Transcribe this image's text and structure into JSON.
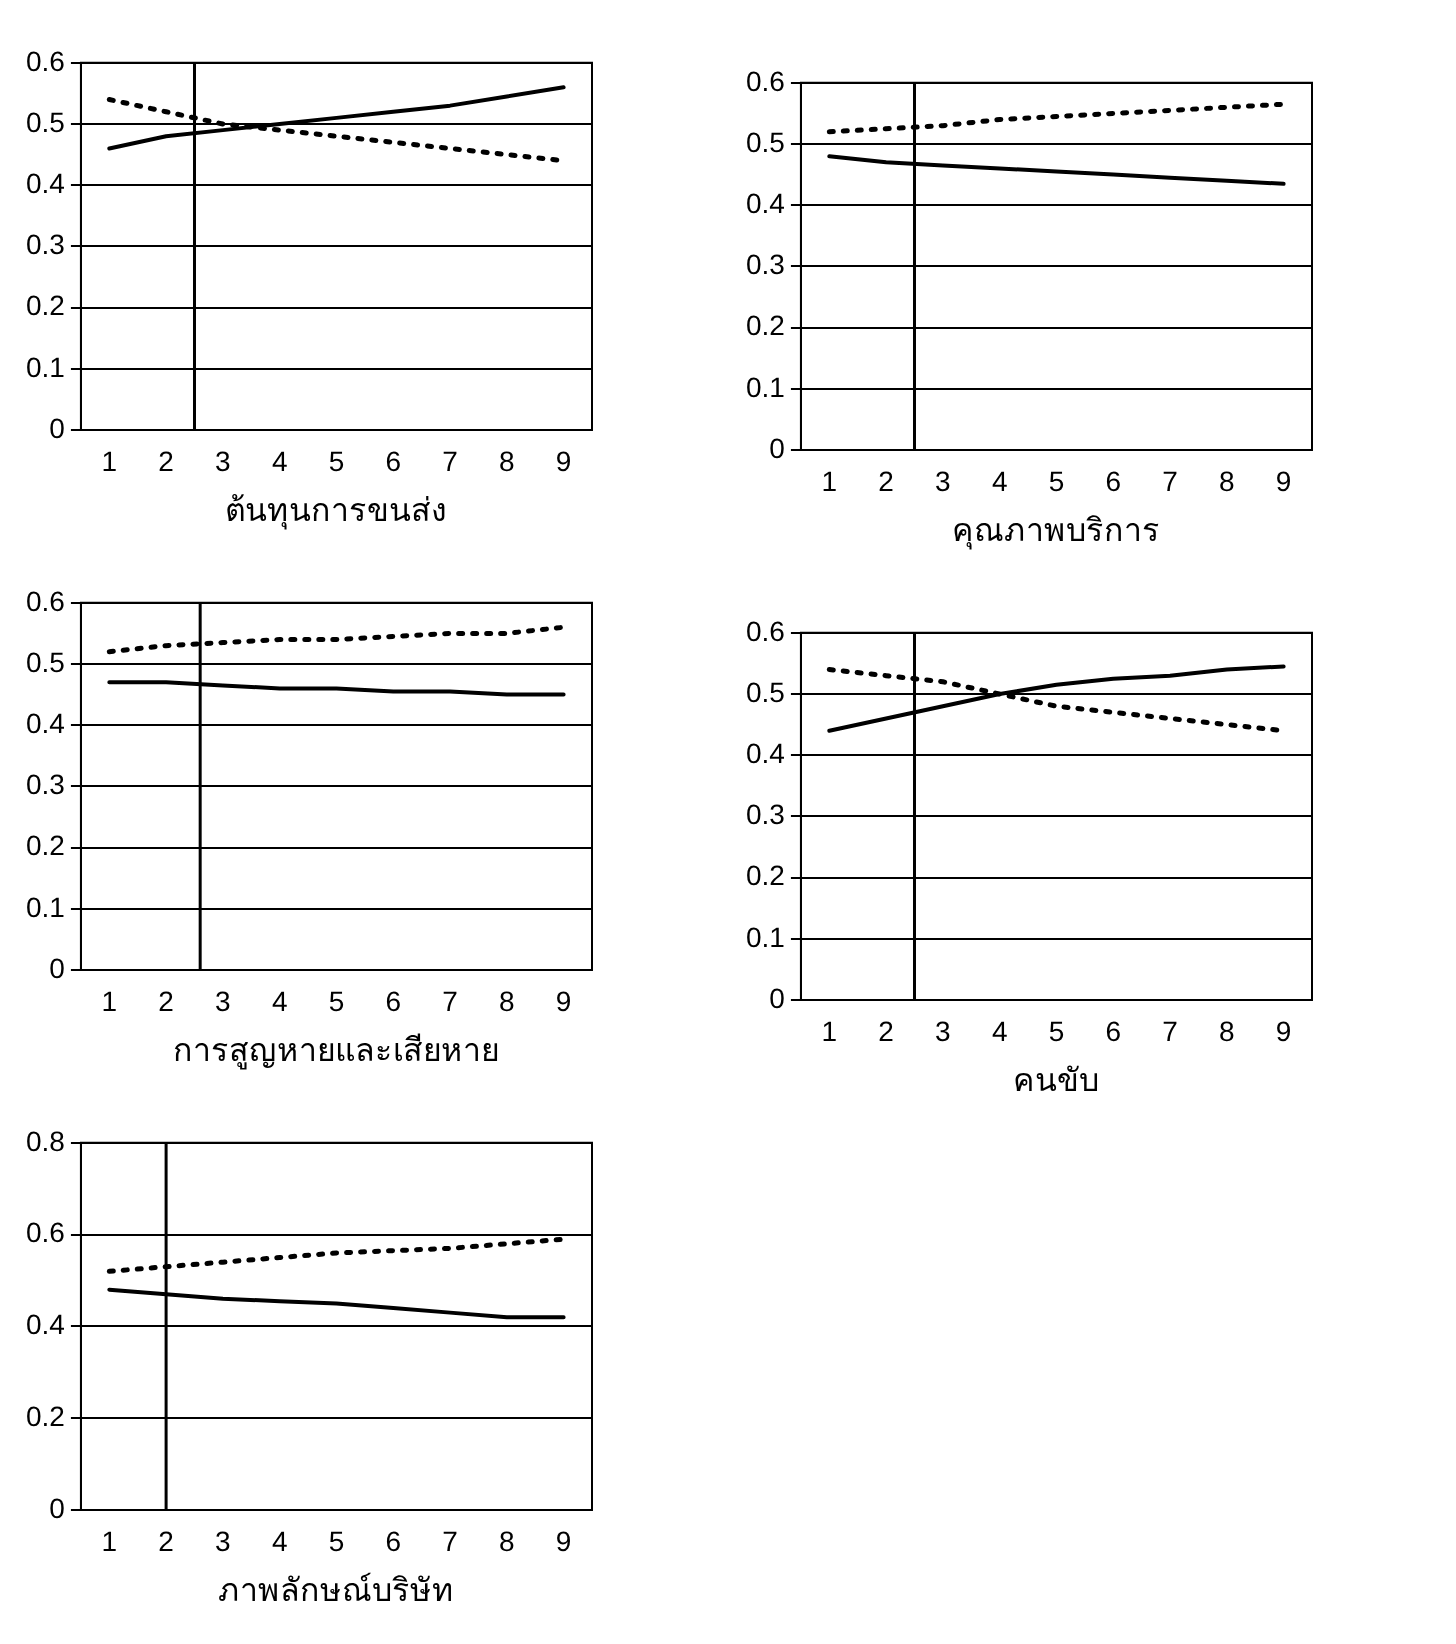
{
  "chart_data": [
    {
      "type": "line",
      "xlabel": "ต้นทุนการขนส่ง",
      "x": [
        1,
        2,
        3,
        4,
        5,
        6,
        7,
        8,
        9
      ],
      "xlim": [
        0.5,
        9.5
      ],
      "xticks": [
        1,
        2,
        3,
        4,
        5,
        6,
        7,
        8,
        9
      ],
      "ylim": [
        0,
        0.6
      ],
      "yticks": [
        0,
        0.1,
        0.2,
        0.3,
        0.4,
        0.5,
        0.6
      ],
      "grid": "y",
      "legend": false,
      "marker": "none",
      "series": [
        {
          "color": "#000000",
          "line_style": "solid",
          "values": [
            0.46,
            0.48,
            0.49,
            0.5,
            0.51,
            0.52,
            0.53,
            0.545,
            0.56
          ]
        },
        {
          "color": "#000000",
          "line_style": "dotted",
          "values": [
            0.54,
            0.52,
            0.5,
            0.49,
            0.48,
            0.47,
            0.46,
            0.45,
            0.44
          ]
        }
      ],
      "ref_lines": [
        {
          "axis": "x",
          "value": 2.5,
          "color": "#000000"
        }
      ]
    },
    {
      "type": "line",
      "xlabel": "คุณภาพบริการ",
      "x": [
        1,
        2,
        3,
        4,
        5,
        6,
        7,
        8,
        9
      ],
      "xlim": [
        0.5,
        9.5
      ],
      "xticks": [
        1,
        2,
        3,
        4,
        5,
        6,
        7,
        8,
        9
      ],
      "ylim": [
        0,
        0.6
      ],
      "yticks": [
        0,
        0.1,
        0.2,
        0.3,
        0.4,
        0.5,
        0.6
      ],
      "grid": "y",
      "legend": false,
      "marker": "none",
      "series": [
        {
          "color": "#000000",
          "line_style": "solid",
          "values": [
            0.48,
            0.47,
            0.465,
            0.46,
            0.455,
            0.45,
            0.445,
            0.44,
            0.435
          ]
        },
        {
          "color": "#000000",
          "line_style": "dotted",
          "values": [
            0.52,
            0.525,
            0.53,
            0.54,
            0.545,
            0.55,
            0.555,
            0.56,
            0.565
          ]
        }
      ],
      "ref_lines": [
        {
          "axis": "x",
          "value": 2.5,
          "color": "#000000"
        }
      ]
    },
    {
      "type": "line",
      "xlabel": "การสูญหายและเสียหาย",
      "x": [
        1,
        2,
        3,
        4,
        5,
        6,
        7,
        8,
        9
      ],
      "xlim": [
        0.5,
        9.5
      ],
      "xticks": [
        1,
        2,
        3,
        4,
        5,
        6,
        7,
        8,
        9
      ],
      "ylim": [
        0,
        0.6
      ],
      "yticks": [
        0,
        0.1,
        0.2,
        0.3,
        0.4,
        0.5,
        0.6
      ],
      "grid": "y",
      "legend": false,
      "marker": "none",
      "series": [
        {
          "color": "#000000",
          "line_style": "solid",
          "values": [
            0.47,
            0.47,
            0.465,
            0.46,
            0.46,
            0.455,
            0.455,
            0.45,
            0.45
          ]
        },
        {
          "color": "#000000",
          "line_style": "dotted",
          "values": [
            0.52,
            0.53,
            0.535,
            0.54,
            0.54,
            0.545,
            0.55,
            0.55,
            0.56
          ]
        }
      ],
      "ref_lines": [
        {
          "axis": "x",
          "value": 2.6,
          "color": "#000000"
        }
      ]
    },
    {
      "type": "line",
      "xlabel": "คนขับ",
      "x": [
        1,
        2,
        3,
        4,
        5,
        6,
        7,
        8,
        9
      ],
      "xlim": [
        0.5,
        9.5
      ],
      "xticks": [
        1,
        2,
        3,
        4,
        5,
        6,
        7,
        8,
        9
      ],
      "ylim": [
        0,
        0.6
      ],
      "yticks": [
        0,
        0.1,
        0.2,
        0.3,
        0.4,
        0.5,
        0.6
      ],
      "grid": "y",
      "legend": false,
      "marker": "none",
      "series": [
        {
          "color": "#000000",
          "line_style": "solid",
          "values": [
            0.44,
            0.46,
            0.48,
            0.5,
            0.515,
            0.525,
            0.53,
            0.54,
            0.545
          ]
        },
        {
          "color": "#000000",
          "line_style": "dotted",
          "values": [
            0.54,
            0.53,
            0.52,
            0.5,
            0.48,
            0.47,
            0.46,
            0.45,
            0.44
          ]
        }
      ],
      "ref_lines": [
        {
          "axis": "x",
          "value": 2.5,
          "color": "#000000"
        }
      ]
    },
    {
      "type": "line",
      "xlabel": "ภาพลักษณ์บริษัท",
      "x": [
        1,
        2,
        3,
        4,
        5,
        6,
        7,
        8,
        9
      ],
      "xlim": [
        0.5,
        9.5
      ],
      "xticks": [
        1,
        2,
        3,
        4,
        5,
        6,
        7,
        8,
        9
      ],
      "ylim": [
        0,
        0.8
      ],
      "yticks": [
        0,
        0.2,
        0.4,
        0.6,
        0.8
      ],
      "grid": "y",
      "legend": false,
      "marker": "none",
      "series": [
        {
          "color": "#000000",
          "line_style": "solid",
          "values": [
            0.48,
            0.47,
            0.46,
            0.455,
            0.45,
            0.44,
            0.43,
            0.42,
            0.42
          ]
        },
        {
          "color": "#000000",
          "line_style": "dotted",
          "values": [
            0.52,
            0.53,
            0.54,
            0.55,
            0.56,
            0.565,
            0.57,
            0.58,
            0.59
          ]
        }
      ],
      "ref_lines": [
        {
          "axis": "x",
          "value": 2,
          "color": "#000000"
        }
      ]
    }
  ]
}
